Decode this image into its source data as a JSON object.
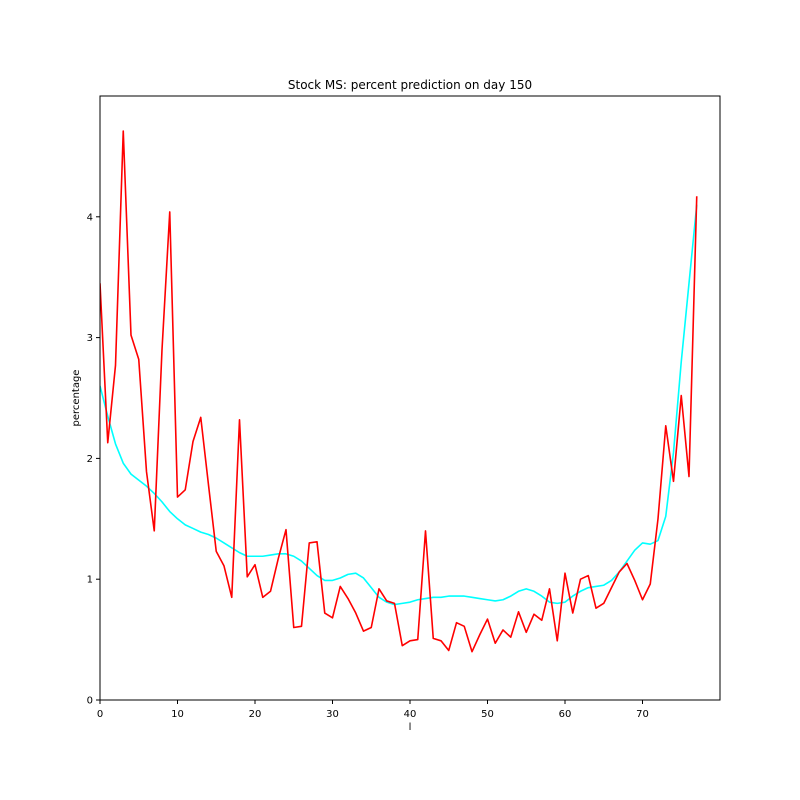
{
  "chart_data": {
    "type": "line",
    "title": "Stock MS: percent prediction on day 150",
    "xlabel": "l",
    "ylabel": "percentage",
    "xlim": [
      0,
      80
    ],
    "ylim": [
      0,
      5
    ],
    "x_ticks": [
      0,
      10,
      20,
      30,
      40,
      50,
      60,
      70
    ],
    "y_ticks": [
      0,
      1,
      2,
      3,
      4
    ],
    "grid": false,
    "legend": "none",
    "series": [
      {
        "color": "#ff0000",
        "x": [
          0,
          1,
          2,
          3,
          4,
          5,
          6,
          7,
          8,
          9,
          10,
          11,
          12,
          13,
          14,
          15,
          16,
          17,
          18,
          19,
          20,
          21,
          22,
          23,
          24,
          25,
          26,
          27,
          28,
          29,
          30,
          31,
          32,
          33,
          34,
          35,
          36,
          37,
          38,
          39,
          40,
          41,
          42,
          43,
          44,
          45,
          46,
          47,
          48,
          49,
          50,
          51,
          52,
          53,
          54,
          55,
          56,
          57,
          58,
          59,
          60,
          61,
          62,
          63,
          64,
          65,
          66,
          67,
          68,
          69,
          70,
          71,
          72,
          73,
          74,
          75,
          76,
          77
        ],
        "values": [
          3.45,
          2.13,
          2.77,
          4.71,
          3.02,
          2.82,
          1.89,
          1.4,
          2.9,
          4.04,
          1.68,
          1.74,
          2.14,
          2.34,
          1.78,
          1.23,
          1.11,
          0.85,
          2.32,
          1.02,
          1.12,
          0.85,
          0.9,
          1.17,
          1.41,
          0.6,
          0.61,
          1.3,
          1.31,
          0.72,
          0.68,
          0.94,
          0.84,
          0.72,
          0.57,
          0.6,
          0.92,
          0.82,
          0.8,
          0.45,
          0.49,
          0.5,
          1.4,
          0.51,
          0.49,
          0.41,
          0.64,
          0.61,
          0.4,
          0.54,
          0.67,
          0.47,
          0.58,
          0.52,
          0.73,
          0.56,
          0.71,
          0.66,
          0.92,
          0.49,
          1.05,
          0.72,
          1.0,
          1.03,
          0.76,
          0.8,
          0.93,
          1.06,
          1.13,
          0.99,
          0.83,
          0.96,
          1.5,
          2.27,
          1.81,
          2.52,
          1.85,
          4.17
        ]
      },
      {
        "color": "#00ffff",
        "x": [
          0,
          1,
          2,
          3,
          4,
          5,
          6,
          7,
          8,
          9,
          10,
          11,
          12,
          13,
          14,
          15,
          16,
          17,
          18,
          19,
          20,
          21,
          22,
          23,
          24,
          25,
          26,
          27,
          28,
          29,
          30,
          31,
          32,
          33,
          34,
          35,
          36,
          37,
          38,
          39,
          40,
          41,
          42,
          43,
          44,
          45,
          46,
          47,
          48,
          49,
          50,
          51,
          52,
          53,
          54,
          55,
          56,
          57,
          58,
          59,
          60,
          61,
          62,
          63,
          64,
          65,
          66,
          67,
          68,
          69,
          70,
          71,
          72,
          73,
          74,
          75,
          76,
          77
        ],
        "values": [
          2.6,
          2.35,
          2.12,
          1.96,
          1.87,
          1.82,
          1.77,
          1.71,
          1.64,
          1.56,
          1.5,
          1.45,
          1.42,
          1.39,
          1.37,
          1.34,
          1.3,
          1.26,
          1.22,
          1.19,
          1.19,
          1.19,
          1.2,
          1.21,
          1.21,
          1.19,
          1.15,
          1.09,
          1.03,
          0.99,
          0.99,
          1.01,
          1.04,
          1.05,
          1.01,
          0.93,
          0.85,
          0.81,
          0.79,
          0.8,
          0.81,
          0.83,
          0.84,
          0.85,
          0.85,
          0.86,
          0.86,
          0.86,
          0.85,
          0.84,
          0.83,
          0.82,
          0.83,
          0.86,
          0.9,
          0.92,
          0.9,
          0.86,
          0.81,
          0.8,
          0.81,
          0.86,
          0.9,
          0.93,
          0.94,
          0.95,
          0.99,
          1.06,
          1.15,
          1.24,
          1.3,
          1.29,
          1.32,
          1.52,
          2.05,
          2.8,
          3.45,
          4.1
        ]
      }
    ]
  }
}
